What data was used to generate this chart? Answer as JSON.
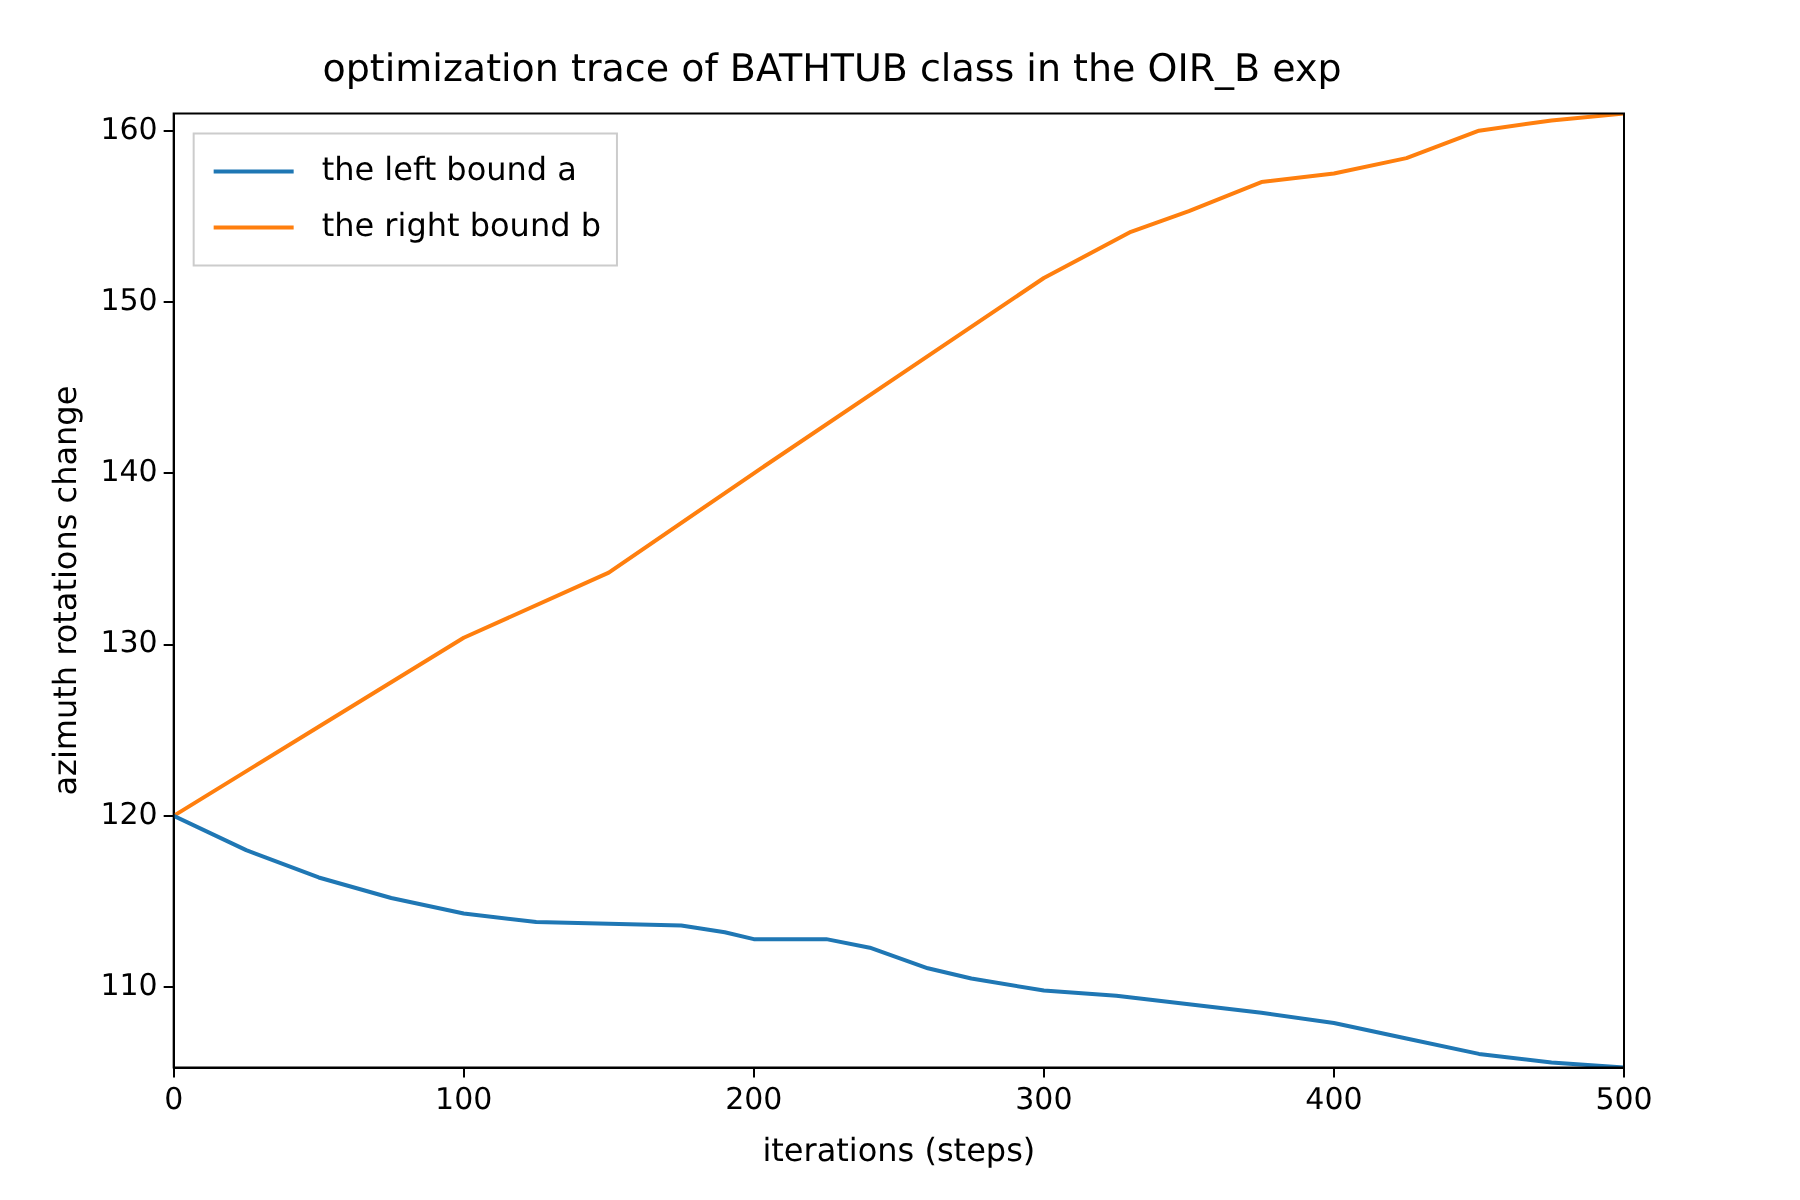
{
  "chart_data": {
    "type": "line",
    "title": "optimization trace of BATHTUB class in the OIR_B exp",
    "xlabel": "iterations (steps)",
    "ylabel": "azimuth rotations change",
    "xlim": [
      0,
      500
    ],
    "xticks": [
      0,
      100,
      200,
      300,
      400,
      500
    ],
    "ylim": [
      105.3,
      161
    ],
    "yticks": [
      110,
      120,
      130,
      140,
      150,
      160
    ],
    "grid": false,
    "legend": "top left",
    "marker": "none",
    "line_style": "solid",
    "series": [
      {
        "name": "the left bound a",
        "color": "#1f77b4",
        "x": [
          0,
          25,
          50,
          75,
          100,
          125,
          150,
          175,
          190,
          200,
          225,
          240,
          260,
          275,
          300,
          325,
          350,
          375,
          400,
          425,
          450,
          475,
          500
        ],
        "values": [
          120,
          118,
          116.4,
          115.2,
          114.3,
          113.8,
          113.7,
          113.6,
          113.2,
          112.8,
          112.8,
          112.3,
          111.1,
          110.5,
          109.8,
          109.5,
          109.0,
          108.5,
          107.9,
          107.0,
          106.1,
          105.6,
          105.3
        ]
      },
      {
        "name": "the right bound b",
        "color": "#ff7f0e",
        "x": [
          0,
          50,
          100,
          150,
          200,
          250,
          300,
          330,
          350,
          375,
          400,
          425,
          450,
          475,
          500
        ],
        "values": [
          120,
          125.2,
          130.4,
          134.2,
          140.0,
          145.7,
          151.4,
          154.1,
          155.3,
          157.0,
          157.5,
          158.4,
          160,
          160.6,
          161
        ]
      }
    ]
  }
}
